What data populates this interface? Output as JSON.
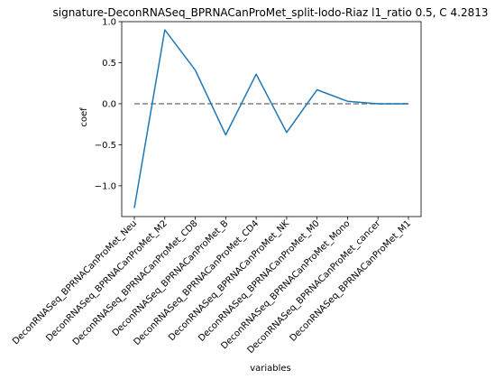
{
  "chart_data": {
    "type": "line",
    "title": "signature-DeconRNASeq_BPRNACanProMet_split-lodo-Riaz l1_ratio 0.5, C 4.2813",
    "xlabel": "variables",
    "ylabel": "coef",
    "categories": [
      "DeconRNASeq_BPRNACanProMet_Neu",
      "DeconRNASeq_BPRNACanProMet_M2",
      "DeconRNASeq_BPRNACanProMet_CD8",
      "DeconRNASeq_BPRNACanProMet_B",
      "DeconRNASeq_BPRNACanProMet_CD4",
      "DeconRNASeq_BPRNACanProMet_NK",
      "DeconRNASeq_BPRNACanProMet_M0",
      "DeconRNASeq_BPRNACanProMet_Mono",
      "DeconRNASeq_BPRNACanProMet_cancer",
      "DeconRNASeq_BPRNACanProMet_M1"
    ],
    "series": [
      {
        "values": [
          -1.27,
          0.9,
          0.41,
          -0.38,
          0.36,
          -0.35,
          0.17,
          0.03,
          0.0,
          0.0
        ],
        "color": "#1f77b4"
      }
    ],
    "reference_line": {
      "y": 0.0,
      "style": "dashed",
      "color": "#808080"
    },
    "ylim": [
      -1.375,
      1.0
    ],
    "yticks": [
      {
        "value": 1.0,
        "label": "1.0"
      },
      {
        "value": 0.5,
        "label": "0.5"
      },
      {
        "value": 0.0,
        "label": "0.0"
      },
      {
        "value": -0.5,
        "label": "−0.5"
      },
      {
        "value": -1.0,
        "label": "−1.0"
      }
    ],
    "grid": false,
    "legend": "none"
  }
}
